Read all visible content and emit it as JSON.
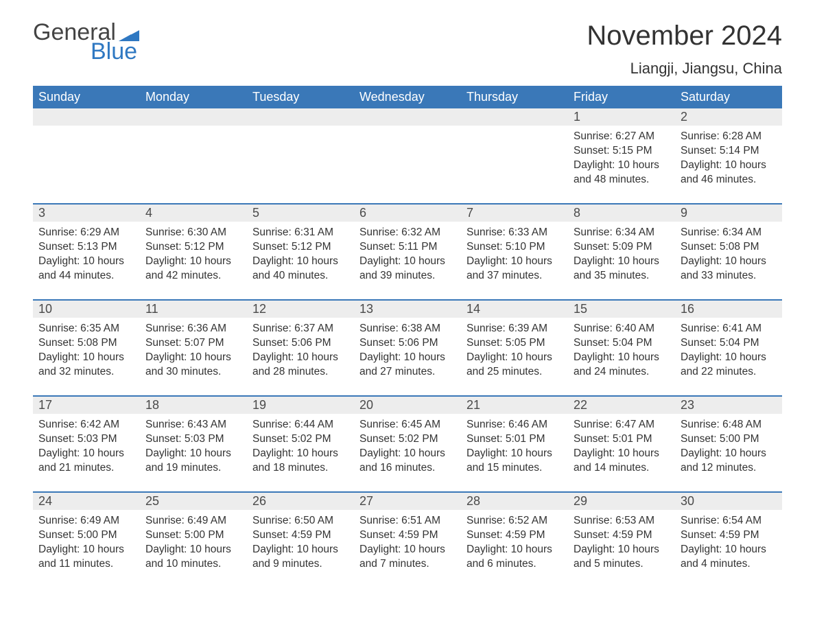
{
  "logo": {
    "text_general": "General",
    "text_blue": "Blue",
    "flag_color": "#2f78c2",
    "general_color": "#444444"
  },
  "header": {
    "month_title": "November 2024",
    "location": "Liangji, Jiangsu, China"
  },
  "style": {
    "header_bg": "#3a78b8",
    "header_text": "#ffffff",
    "daynum_bg": "#ededed",
    "daynum_text": "#4a4a4a",
    "body_text": "#333333",
    "divider_color": "#3a78b8",
    "page_bg": "#ffffff",
    "font_family": "Arial",
    "month_title_fontsize": 40,
    "location_fontsize": 22,
    "weekday_fontsize": 18,
    "daynum_fontsize": 18,
    "body_fontsize": 15.5
  },
  "weekdays": [
    "Sunday",
    "Monday",
    "Tuesday",
    "Wednesday",
    "Thursday",
    "Friday",
    "Saturday"
  ],
  "weeks": [
    [
      {
        "day": "",
        "sunrise": "",
        "sunset": "",
        "daylight": ""
      },
      {
        "day": "",
        "sunrise": "",
        "sunset": "",
        "daylight": ""
      },
      {
        "day": "",
        "sunrise": "",
        "sunset": "",
        "daylight": ""
      },
      {
        "day": "",
        "sunrise": "",
        "sunset": "",
        "daylight": ""
      },
      {
        "day": "",
        "sunrise": "",
        "sunset": "",
        "daylight": ""
      },
      {
        "day": "1",
        "sunrise": "Sunrise: 6:27 AM",
        "sunset": "Sunset: 5:15 PM",
        "daylight": "Daylight: 10 hours and 48 minutes."
      },
      {
        "day": "2",
        "sunrise": "Sunrise: 6:28 AM",
        "sunset": "Sunset: 5:14 PM",
        "daylight": "Daylight: 10 hours and 46 minutes."
      }
    ],
    [
      {
        "day": "3",
        "sunrise": "Sunrise: 6:29 AM",
        "sunset": "Sunset: 5:13 PM",
        "daylight": "Daylight: 10 hours and 44 minutes."
      },
      {
        "day": "4",
        "sunrise": "Sunrise: 6:30 AM",
        "sunset": "Sunset: 5:12 PM",
        "daylight": "Daylight: 10 hours and 42 minutes."
      },
      {
        "day": "5",
        "sunrise": "Sunrise: 6:31 AM",
        "sunset": "Sunset: 5:12 PM",
        "daylight": "Daylight: 10 hours and 40 minutes."
      },
      {
        "day": "6",
        "sunrise": "Sunrise: 6:32 AM",
        "sunset": "Sunset: 5:11 PM",
        "daylight": "Daylight: 10 hours and 39 minutes."
      },
      {
        "day": "7",
        "sunrise": "Sunrise: 6:33 AM",
        "sunset": "Sunset: 5:10 PM",
        "daylight": "Daylight: 10 hours and 37 minutes."
      },
      {
        "day": "8",
        "sunrise": "Sunrise: 6:34 AM",
        "sunset": "Sunset: 5:09 PM",
        "daylight": "Daylight: 10 hours and 35 minutes."
      },
      {
        "day": "9",
        "sunrise": "Sunrise: 6:34 AM",
        "sunset": "Sunset: 5:08 PM",
        "daylight": "Daylight: 10 hours and 33 minutes."
      }
    ],
    [
      {
        "day": "10",
        "sunrise": "Sunrise: 6:35 AM",
        "sunset": "Sunset: 5:08 PM",
        "daylight": "Daylight: 10 hours and 32 minutes."
      },
      {
        "day": "11",
        "sunrise": "Sunrise: 6:36 AM",
        "sunset": "Sunset: 5:07 PM",
        "daylight": "Daylight: 10 hours and 30 minutes."
      },
      {
        "day": "12",
        "sunrise": "Sunrise: 6:37 AM",
        "sunset": "Sunset: 5:06 PM",
        "daylight": "Daylight: 10 hours and 28 minutes."
      },
      {
        "day": "13",
        "sunrise": "Sunrise: 6:38 AM",
        "sunset": "Sunset: 5:06 PM",
        "daylight": "Daylight: 10 hours and 27 minutes."
      },
      {
        "day": "14",
        "sunrise": "Sunrise: 6:39 AM",
        "sunset": "Sunset: 5:05 PM",
        "daylight": "Daylight: 10 hours and 25 minutes."
      },
      {
        "day": "15",
        "sunrise": "Sunrise: 6:40 AM",
        "sunset": "Sunset: 5:04 PM",
        "daylight": "Daylight: 10 hours and 24 minutes."
      },
      {
        "day": "16",
        "sunrise": "Sunrise: 6:41 AM",
        "sunset": "Sunset: 5:04 PM",
        "daylight": "Daylight: 10 hours and 22 minutes."
      }
    ],
    [
      {
        "day": "17",
        "sunrise": "Sunrise: 6:42 AM",
        "sunset": "Sunset: 5:03 PM",
        "daylight": "Daylight: 10 hours and 21 minutes."
      },
      {
        "day": "18",
        "sunrise": "Sunrise: 6:43 AM",
        "sunset": "Sunset: 5:03 PM",
        "daylight": "Daylight: 10 hours and 19 minutes."
      },
      {
        "day": "19",
        "sunrise": "Sunrise: 6:44 AM",
        "sunset": "Sunset: 5:02 PM",
        "daylight": "Daylight: 10 hours and 18 minutes."
      },
      {
        "day": "20",
        "sunrise": "Sunrise: 6:45 AM",
        "sunset": "Sunset: 5:02 PM",
        "daylight": "Daylight: 10 hours and 16 minutes."
      },
      {
        "day": "21",
        "sunrise": "Sunrise: 6:46 AM",
        "sunset": "Sunset: 5:01 PM",
        "daylight": "Daylight: 10 hours and 15 minutes."
      },
      {
        "day": "22",
        "sunrise": "Sunrise: 6:47 AM",
        "sunset": "Sunset: 5:01 PM",
        "daylight": "Daylight: 10 hours and 14 minutes."
      },
      {
        "day": "23",
        "sunrise": "Sunrise: 6:48 AM",
        "sunset": "Sunset: 5:00 PM",
        "daylight": "Daylight: 10 hours and 12 minutes."
      }
    ],
    [
      {
        "day": "24",
        "sunrise": "Sunrise: 6:49 AM",
        "sunset": "Sunset: 5:00 PM",
        "daylight": "Daylight: 10 hours and 11 minutes."
      },
      {
        "day": "25",
        "sunrise": "Sunrise: 6:49 AM",
        "sunset": "Sunset: 5:00 PM",
        "daylight": "Daylight: 10 hours and 10 minutes."
      },
      {
        "day": "26",
        "sunrise": "Sunrise: 6:50 AM",
        "sunset": "Sunset: 4:59 PM",
        "daylight": "Daylight: 10 hours and 9 minutes."
      },
      {
        "day": "27",
        "sunrise": "Sunrise: 6:51 AM",
        "sunset": "Sunset: 4:59 PM",
        "daylight": "Daylight: 10 hours and 7 minutes."
      },
      {
        "day": "28",
        "sunrise": "Sunrise: 6:52 AM",
        "sunset": "Sunset: 4:59 PM",
        "daylight": "Daylight: 10 hours and 6 minutes."
      },
      {
        "day": "29",
        "sunrise": "Sunrise: 6:53 AM",
        "sunset": "Sunset: 4:59 PM",
        "daylight": "Daylight: 10 hours and 5 minutes."
      },
      {
        "day": "30",
        "sunrise": "Sunrise: 6:54 AM",
        "sunset": "Sunset: 4:59 PM",
        "daylight": "Daylight: 10 hours and 4 minutes."
      }
    ]
  ]
}
